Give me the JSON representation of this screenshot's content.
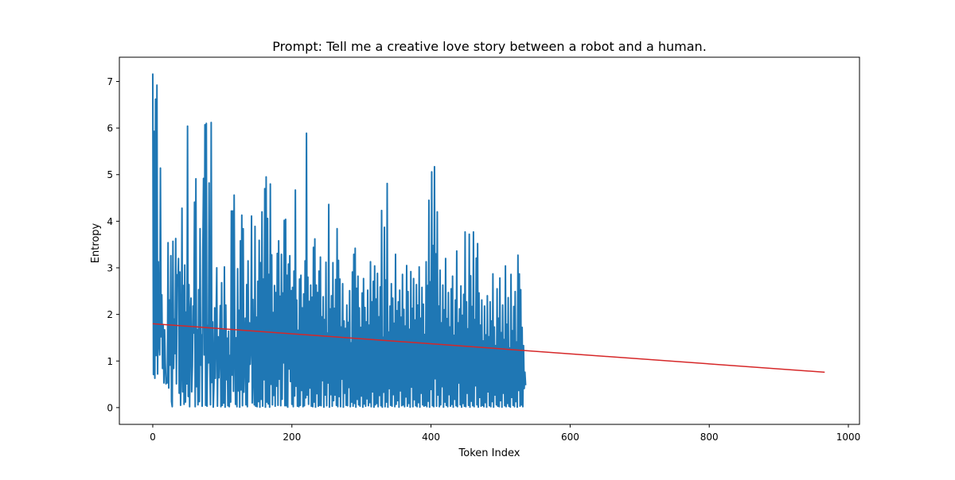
{
  "chart_data": {
    "type": "line",
    "title": "Prompt: Tell me a creative love story between a robot and a human.",
    "xlabel": "Token Index",
    "ylabel": "Entropy",
    "xlim": [
      -48,
      1016
    ],
    "ylim": [
      -0.36,
      7.52
    ],
    "xticks": [
      0,
      200,
      400,
      600,
      800,
      1000
    ],
    "yticks": [
      0,
      1,
      2,
      3,
      4,
      5,
      6,
      7
    ],
    "grid": false,
    "legend": "none",
    "colors": {
      "series": "#1f77b4",
      "trend": "#d62728"
    },
    "series": [
      {
        "x_start": 0,
        "x_step": 1,
        "values": [
          7.17,
          0.71,
          5.93,
          0.63,
          6.62,
          1.12,
          6.92,
          0.72,
          3.13,
          1.41,
          1.13,
          5.14,
          1.52,
          2.42,
          0.84,
          1.76,
          0.53,
          1.67,
          0.95,
          0.51,
          0.63,
          0.53,
          3.54,
          0.42,
          2.31,
          0.91,
          3.26,
          0.13,
          0.02,
          3.57,
          0.84,
          1.9,
          1.16,
          3.63,
          0.51,
          2.85,
          2.62,
          3.2,
          0.31,
          2.91,
          0.05,
          0.88,
          4.28,
          0.34,
          2.62,
          0.07,
          3.06,
          0.12,
          2.05,
          0.51,
          6.04,
          0.24,
          2.64,
          0.02,
          1.97,
          2.35,
          0.34,
          0.9,
          2.18,
          1.6,
          4.41,
          0.02,
          4.91,
          0.45,
          1.67,
          0.06,
          2.53,
          0.13,
          3.84,
          0.91,
          1.56,
          0.03,
          3.37,
          4.92,
          1.13,
          6.07,
          0.05,
          6.1,
          0.03,
          1.76,
          0.96,
          4.82,
          1.04,
          0.06,
          6.12,
          0.54,
          1.84,
          0.01,
          0.52,
          2.14,
          0.63,
          1.76,
          3.0,
          0.03,
          1.52,
          0.64,
          1.26,
          2.19,
          0.02,
          2.68,
          0.05,
          1.66,
          0.1,
          3.02,
          0.01,
          2.2,
          0.6,
          1.49,
          0.04,
          1.64,
          0.02,
          1.12,
          0.12,
          4.22,
          0.7,
          4.22,
          0.35,
          4.56,
          1.36,
          0.07,
          1.5,
          0.02,
          2.98,
          0.36,
          2.09,
          0.01,
          3.58,
          0.38,
          4.13,
          0.04,
          3.84,
          0.33,
          1.15,
          1.92,
          0.06,
          2.64,
          0.02,
          3.15,
          0.55,
          1.82,
          0.93,
          1.34,
          4.11,
          0.1,
          2.32,
          0.73,
          0.06,
          3.89,
          0.03,
          1.94,
          0.02,
          2.71,
          0.13,
          3.59,
          0.01,
          3.11,
          0.18,
          4.2,
          0.03,
          2.76,
          0.6,
          4.7,
          0.01,
          4.95,
          0.12,
          4.06,
          0.08,
          2.86,
          0.01,
          4.8,
          0.5,
          3.28,
          0.06,
          2.04,
          0.26,
          2.62,
          0.03,
          2.47,
          0.46,
          3.31,
          0.05,
          3.58,
          0.61,
          2.39,
          0.04,
          3.29,
          0.18,
          2.46,
          0.96,
          4.02,
          0.04,
          4.04,
          0.04,
          2.84,
          0.01,
          3.08,
          0.83,
          3.26,
          0.56,
          2.51,
          0.07,
          2.58,
          0.02,
          2.93,
          0.25,
          4.67,
          0.46,
          2.31,
          0.03,
          1.66,
          0.02,
          2.76,
          0.05,
          2.84,
          0.37,
          2.14,
          0.02,
          2.44,
          0.04,
          3.15,
          0.21,
          5.89,
          0.27,
          2.8,
          0.07,
          2.28,
          0.42,
          2.63,
          0.03,
          2.37,
          0.02,
          3.44,
          0.12,
          3.62,
          0.01,
          2.63,
          0.3,
          2.47,
          0.03,
          2.93,
          0.05,
          3.23,
          0.04,
          1.95,
          0.58,
          2.38,
          0.01,
          1.89,
          0.27,
          3.12,
          0.04,
          1.6,
          0.53,
          4.36,
          0.01,
          2.12,
          0.28,
          2.4,
          0.03,
          3.11,
          0.15,
          2.13,
          0.27,
          2.75,
          0.05,
          3.84,
          0.02,
          3.16,
          0.24,
          2.76,
          0.02,
          1.73,
          0.61,
          2.66,
          0.01,
          1.86,
          0.31,
          1.7,
          0.05,
          2.2,
          0.04,
          1.83,
          0.43,
          2.51,
          0.02,
          1.39,
          0.12,
          2.91,
          0.03,
          3.29,
          0.09,
          3.42,
          0.01,
          2.56,
          0.18,
          2.82,
          0.06,
          2.14,
          0.03,
          1.72,
          0.25,
          2.46,
          0.01,
          2.77,
          0.08,
          2.15,
          0.03,
          1.84,
          0.19,
          2.52,
          0.04,
          1.77,
          0.11,
          3.13,
          0.02,
          2.27,
          0.34,
          2.71,
          0.01,
          3.04,
          0.06,
          2.33,
          0.09,
          2.88,
          0.02,
          1.95,
          0.26,
          2.59,
          0.04,
          4.23,
          0.01,
          1.51,
          0.33,
          3.87,
          0.02,
          2.74,
          0.12,
          4.81,
          0.01,
          1.62,
          0.41,
          2.18,
          0.05,
          2.66,
          0.03,
          2.35,
          0.28,
          1.81,
          0.02,
          3.29,
          0.07,
          2.08,
          0.15,
          2.27,
          0.01,
          2.52,
          0.36,
          1.94,
          0.04,
          2.86,
          0.06,
          2.11,
          0.02,
          1.75,
          0.23,
          3.05,
          0.03,
          2.49,
          0.09,
          1.68,
          0.01,
          2.92,
          0.44,
          2.13,
          0.02,
          2.77,
          0.17,
          1.88,
          0.04,
          2.64,
          0.02,
          2.2,
          0.11,
          3.02,
          0.01,
          1.92,
          0.31,
          2.58,
          0.06,
          2.22,
          0.03,
          1.57,
          0.05,
          3.13,
          0.02,
          2.62,
          0.14,
          4.45,
          0.01,
          2.7,
          0.39,
          5.06,
          0.04,
          3.48,
          0.02,
          5.17,
          0.62,
          3.3,
          0.03,
          4.2,
          0.27,
          2.18,
          0.02,
          2.95,
          0.06,
          1.82,
          0.45,
          2.63,
          0.01,
          2.1,
          0.12,
          3.2,
          0.05,
          1.91,
          0.02,
          2.47,
          0.28,
          1.73,
          0.03,
          2.55,
          0.07,
          2.82,
          0.01,
          1.55,
          0.18,
          2.31,
          0.04,
          3.36,
          0.02,
          1.82,
          0.53,
          2.12,
          0.06,
          2.61,
          0.01,
          1.98,
          0.09,
          2.43,
          0.03,
          3.77,
          0.02,
          2.27,
          0.31,
          1.69,
          0.05,
          3.72,
          0.01,
          2.83,
          0.14,
          2.17,
          0.04,
          3.77,
          0.02,
          1.89,
          0.47,
          3.21,
          0.06,
          3.52,
          0.01,
          2.46,
          0.22,
          1.77,
          0.03,
          2.31,
          0.05,
          1.43,
          0.02,
          2.18,
          0.11,
          1.56,
          0.01,
          2.4,
          0.34,
          1.52,
          0.04,
          2.27,
          0.02,
          1.86,
          0.13,
          2.87,
          0.01,
          1.73,
          0.27,
          1.33,
          0.06,
          2.55,
          0.03,
          1.92,
          0.02,
          2.78,
          0.15,
          1.61,
          0.01,
          2.2,
          0.31,
          1.46,
          0.04,
          3.04,
          0.02,
          1.79,
          0.09,
          2.36,
          0.03,
          1.28,
          0.01,
          2.86,
          0.22,
          1.65,
          0.05,
          2.17,
          0.02,
          2.49,
          0.13,
          1.41,
          0.01,
          3.27,
          0.37,
          2.87,
          0.03,
          2.53,
          0.06,
          1.72,
          0.02,
          1.33,
          0.41,
          0.76,
          0.48
        ]
      },
      {
        "x": [
          0,
          966
        ],
        "values": [
          1.8,
          0.76
        ]
      }
    ]
  }
}
